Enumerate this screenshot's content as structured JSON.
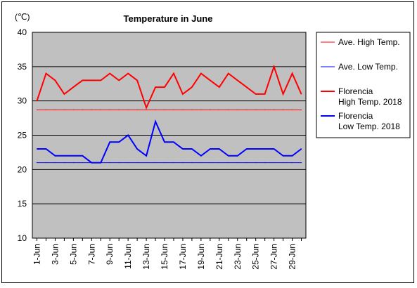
{
  "chart_data": {
    "type": "line",
    "title": "Temperature in June",
    "ylabel": "(℃)",
    "xlabel": "",
    "ylim": [
      10,
      40
    ],
    "yticks": [
      10,
      15,
      20,
      25,
      30,
      35,
      40
    ],
    "grid": true,
    "legend_position": "right",
    "x": [
      "1-Jun",
      "2-Jun",
      "3-Jun",
      "4-Jun",
      "5-Jun",
      "6-Jun",
      "7-Jun",
      "8-Jun",
      "9-Jun",
      "10-Jun",
      "11-Jun",
      "12-Jun",
      "13-Jun",
      "14-Jun",
      "15-Jun",
      "16-Jun",
      "17-Jun",
      "18-Jun",
      "19-Jun",
      "20-Jun",
      "21-Jun",
      "22-Jun",
      "23-Jun",
      "24-Jun",
      "25-Jun",
      "26-Jun",
      "27-Jun",
      "28-Jun",
      "29-Jun",
      "30-Jun"
    ],
    "xtick_labels": [
      "1-Jun",
      "3-Jun",
      "5-Jun",
      "7-Jun",
      "9-Jun",
      "11-Jun",
      "13-Jun",
      "15-Jun",
      "17-Jun",
      "19-Jun",
      "21-Jun",
      "23-Jun",
      "25-Jun",
      "27-Jun",
      "29-Jun"
    ],
    "series": [
      {
        "name": "Ave. High Temp.",
        "color": "#ff0000",
        "style": "thin",
        "values": [
          28.7,
          28.7,
          28.7,
          28.7,
          28.7,
          28.7,
          28.7,
          28.7,
          28.7,
          28.7,
          28.7,
          28.7,
          28.7,
          28.7,
          28.7,
          28.7,
          28.7,
          28.7,
          28.7,
          28.7,
          28.7,
          28.7,
          28.7,
          28.7,
          28.7,
          28.7,
          28.7,
          28.7,
          28.7,
          28.7
        ]
      },
      {
        "name": "Ave. Low Temp.",
        "color": "#0000ff",
        "style": "thin",
        "values": [
          21,
          21,
          21,
          21,
          21,
          21,
          21,
          21,
          21,
          21,
          21,
          21,
          21,
          21,
          21,
          21,
          21,
          21,
          21,
          21,
          21,
          21,
          21,
          21,
          21,
          21,
          21,
          21,
          21,
          21
        ]
      },
      {
        "name": "Florencia\nHigh Temp. 2018",
        "color": "#ff0000",
        "style": "thick",
        "values": [
          30,
          34,
          33,
          31,
          32,
          33,
          33,
          33,
          34,
          33,
          34,
          33,
          29,
          32,
          32,
          34,
          31,
          32,
          34,
          33,
          32,
          34,
          33,
          32,
          31,
          31,
          35,
          31,
          34,
          31
        ]
      },
      {
        "name": "Florencia\nLow Temp. 2018",
        "color": "#0000ff",
        "style": "thick",
        "values": [
          23,
          23,
          22,
          22,
          22,
          22,
          21,
          21,
          24,
          24,
          25,
          23,
          22,
          27,
          24,
          24,
          23,
          23,
          22,
          23,
          23,
          22,
          22,
          23,
          23,
          23,
          23,
          22,
          22,
          23
        ]
      }
    ],
    "colors": {
      "plot_bg": "#c0c0c0",
      "grid": "#000000"
    }
  }
}
